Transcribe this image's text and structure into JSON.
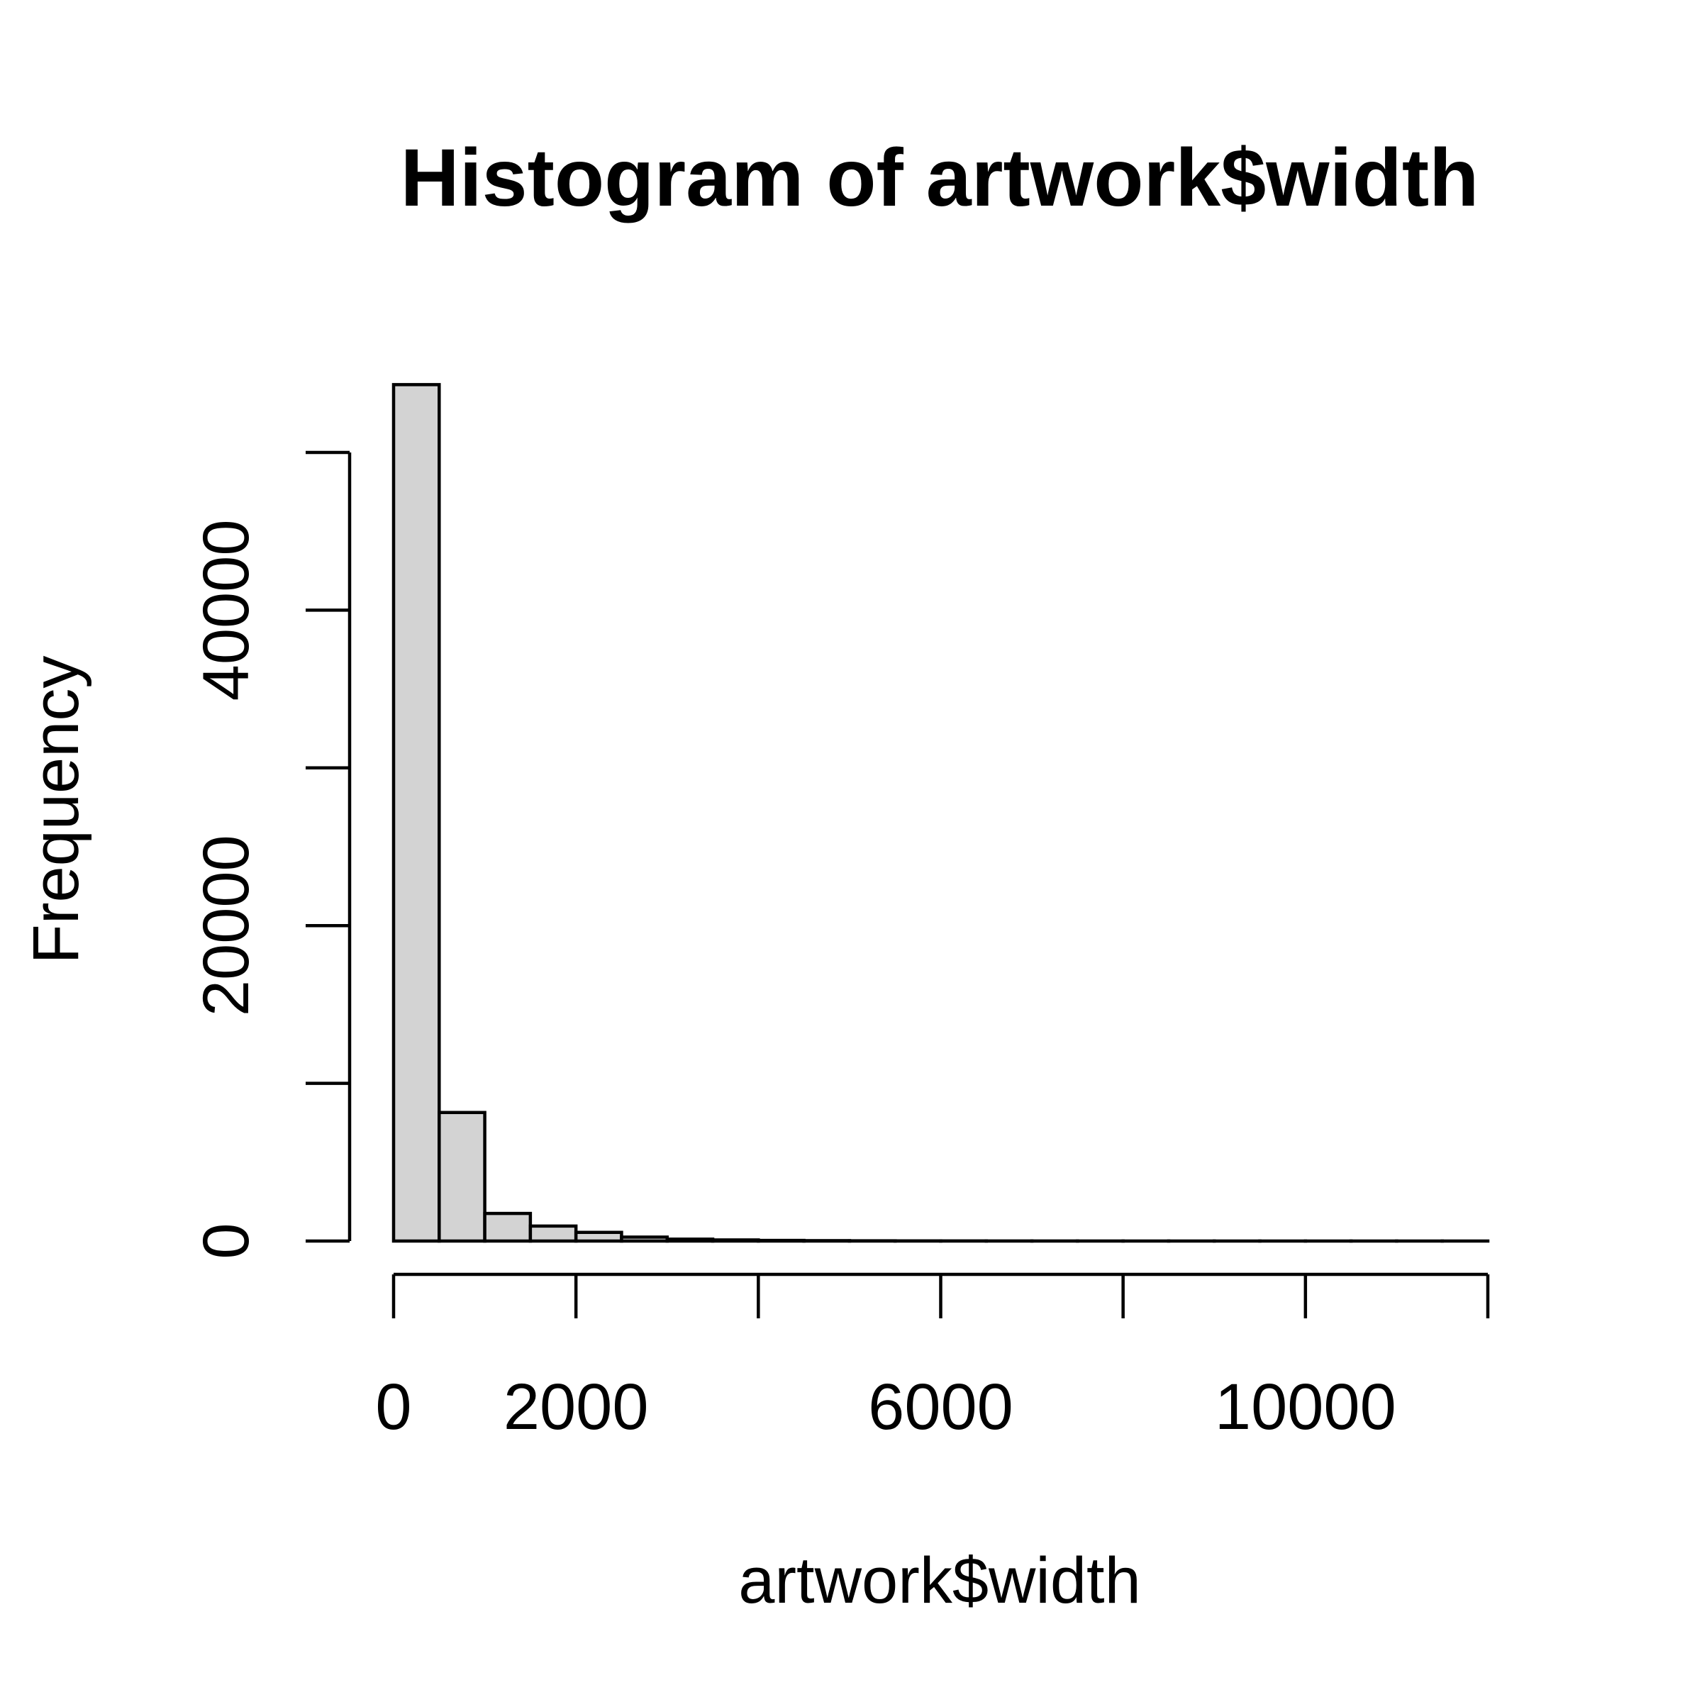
{
  "chart_data": {
    "type": "bar",
    "title": "Histogram of artwork$width",
    "xlabel": "artwork$width",
    "ylabel": "Frequency",
    "bin_width": 500,
    "bin_edges": [
      0,
      500,
      1000,
      1500,
      2000,
      2500,
      3000,
      3500,
      4000,
      4500,
      5000,
      5500,
      6000,
      6500,
      7000,
      7500,
      8000,
      8500,
      9000,
      9500,
      10000,
      10500,
      11000,
      11500,
      12000
    ],
    "values": [
      54300,
      8150,
      1750,
      950,
      550,
      250,
      120,
      70,
      40,
      25,
      15,
      10,
      8,
      5,
      4,
      3,
      2,
      2,
      1,
      1,
      1,
      1,
      1,
      1
    ],
    "xlim": [
      0,
      12000
    ],
    "ylim": [
      0,
      50000
    ],
    "xticks": [
      0,
      2000,
      4000,
      6000,
      8000,
      10000,
      12000
    ],
    "xtick_labels": [
      "0",
      "2000",
      "",
      "6000",
      "",
      "10000",
      ""
    ],
    "yticks": [
      0,
      10000,
      20000,
      30000,
      40000,
      50000
    ],
    "ytick_labels": [
      "0",
      "",
      "20000",
      "",
      "40000",
      ""
    ],
    "bar_fill": "#d3d3d3",
    "grid": false
  }
}
